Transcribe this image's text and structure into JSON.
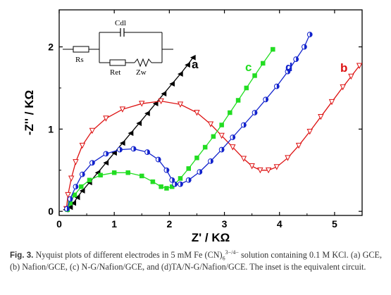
{
  "chart_data": {
    "type": "scatter",
    "title": "",
    "xlabel": "Z' / KΩ",
    "ylabel": "-Z'' / KΩ",
    "xlim": [
      0,
      5.5
    ],
    "ylim": [
      -0.05,
      2.45
    ],
    "x_ticks": [
      "0",
      "1",
      "2",
      "3",
      "4",
      "5"
    ],
    "y_ticks": [
      "0",
      "1",
      "2"
    ],
    "grid": false,
    "series": [
      {
        "name": "a",
        "color": "#000000",
        "marker": "triangle-left",
        "points": [
          [
            0.12,
            0.02
          ],
          [
            0.2,
            0.05
          ],
          [
            0.26,
            0.1
          ],
          [
            0.33,
            0.17
          ],
          [
            0.42,
            0.25
          ],
          [
            0.55,
            0.35
          ],
          [
            0.7,
            0.47
          ],
          [
            0.85,
            0.59
          ],
          [
            1.0,
            0.71
          ],
          [
            1.15,
            0.83
          ],
          [
            1.3,
            0.95
          ],
          [
            1.45,
            1.07
          ],
          [
            1.6,
            1.19
          ],
          [
            1.75,
            1.31
          ],
          [
            1.9,
            1.43
          ],
          [
            2.05,
            1.55
          ],
          [
            2.2,
            1.67
          ],
          [
            2.33,
            1.78
          ],
          [
            2.43,
            1.87
          ]
        ]
      },
      {
        "name": "b",
        "color": "#dd1111",
        "marker": "triangle-down",
        "points": [
          [
            0.13,
            0.03
          ],
          [
            0.16,
            0.2
          ],
          [
            0.22,
            0.4
          ],
          [
            0.3,
            0.6
          ],
          [
            0.42,
            0.8
          ],
          [
            0.6,
            0.98
          ],
          [
            0.85,
            1.13
          ],
          [
            1.15,
            1.24
          ],
          [
            1.5,
            1.31
          ],
          [
            1.85,
            1.34
          ],
          [
            2.2,
            1.3
          ],
          [
            2.5,
            1.2
          ],
          [
            2.75,
            1.06
          ],
          [
            2.95,
            0.92
          ],
          [
            3.15,
            0.78
          ],
          [
            3.35,
            0.64
          ],
          [
            3.5,
            0.55
          ],
          [
            3.65,
            0.5
          ],
          [
            3.8,
            0.5
          ],
          [
            3.95,
            0.54
          ],
          [
            4.15,
            0.65
          ],
          [
            4.35,
            0.8
          ],
          [
            4.55,
            0.97
          ],
          [
            4.75,
            1.15
          ],
          [
            4.95,
            1.33
          ],
          [
            5.15,
            1.51
          ],
          [
            5.3,
            1.64
          ],
          [
            5.45,
            1.77
          ]
        ]
      },
      {
        "name": "c",
        "color": "#22dd22",
        "marker": "square",
        "points": [
          [
            0.15,
            0.02
          ],
          [
            0.2,
            0.1
          ],
          [
            0.28,
            0.2
          ],
          [
            0.4,
            0.3
          ],
          [
            0.55,
            0.38
          ],
          [
            0.75,
            0.44
          ],
          [
            1.0,
            0.47
          ],
          [
            1.25,
            0.47
          ],
          [
            1.5,
            0.43
          ],
          [
            1.7,
            0.36
          ],
          [
            1.85,
            0.3
          ],
          [
            1.95,
            0.28
          ],
          [
            2.05,
            0.3
          ],
          [
            2.2,
            0.4
          ],
          [
            2.35,
            0.52
          ],
          [
            2.5,
            0.65
          ],
          [
            2.65,
            0.78
          ],
          [
            2.8,
            0.91
          ],
          [
            2.95,
            1.05
          ],
          [
            3.1,
            1.2
          ],
          [
            3.25,
            1.35
          ],
          [
            3.4,
            1.5
          ],
          [
            3.55,
            1.65
          ],
          [
            3.7,
            1.8
          ],
          [
            3.88,
            1.97
          ]
        ]
      },
      {
        "name": "d",
        "color": "#1122cc",
        "marker": "half-circle",
        "points": [
          [
            0.14,
            0.03
          ],
          [
            0.2,
            0.15
          ],
          [
            0.3,
            0.3
          ],
          [
            0.42,
            0.45
          ],
          [
            0.6,
            0.59
          ],
          [
            0.85,
            0.7
          ],
          [
            1.1,
            0.75
          ],
          [
            1.35,
            0.76
          ],
          [
            1.6,
            0.72
          ],
          [
            1.8,
            0.63
          ],
          [
            1.95,
            0.5
          ],
          [
            2.05,
            0.38
          ],
          [
            2.1,
            0.33
          ],
          [
            2.2,
            0.33
          ],
          [
            2.35,
            0.38
          ],
          [
            2.55,
            0.48
          ],
          [
            2.75,
            0.61
          ],
          [
            2.95,
            0.75
          ],
          [
            3.15,
            0.9
          ],
          [
            3.35,
            1.05
          ],
          [
            3.55,
            1.2
          ],
          [
            3.75,
            1.36
          ],
          [
            3.95,
            1.52
          ],
          [
            4.15,
            1.7
          ],
          [
            4.3,
            1.85
          ],
          [
            4.45,
            2.0
          ],
          [
            4.55,
            2.15
          ]
        ]
      }
    ],
    "inset_circuit": {
      "labels": [
        "Rs",
        "Cdl",
        "Ret",
        "Zw"
      ]
    }
  },
  "caption": {
    "label": "Fig. 3.",
    "text_before": " Nyquist plots of different electrodes in 5 mM Fe (CN)",
    "subscript": "6",
    "superscript": "3−/4−",
    "text_after": " solution containing 0.1 M KCl. (a) GCE, (b) Nafion/GCE, (c) N-G/Nafion/GCE, and (d)TA/N-G/Nafion/GCE. The inset is the equivalent circuit."
  }
}
